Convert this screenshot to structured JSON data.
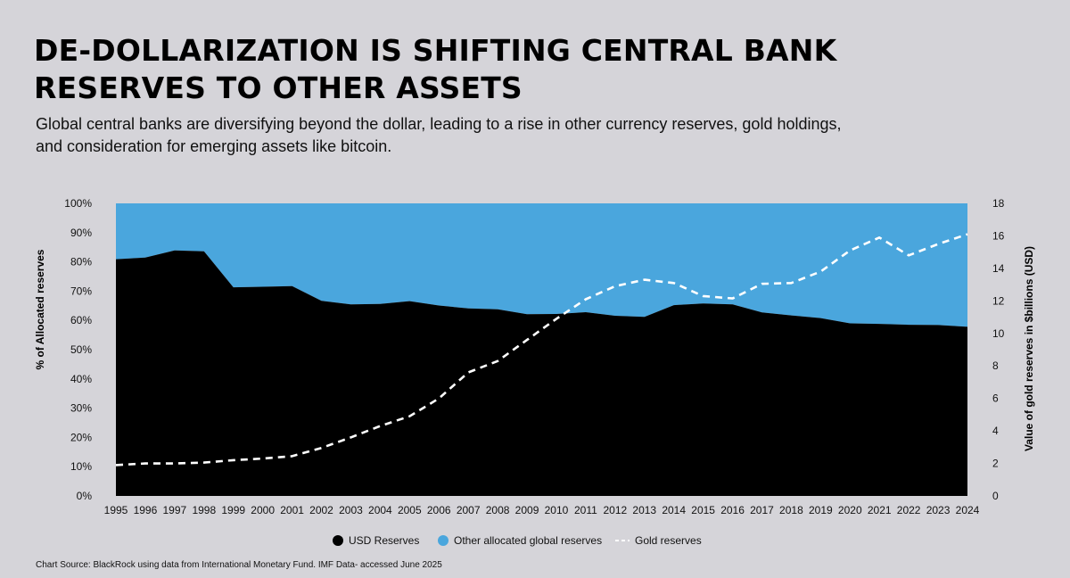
{
  "header": {
    "title_line1": "DE-DOLLARIZATION IS SHIFTING CENTRAL BANK",
    "title_line2": "RESERVES TO OTHER ASSETS",
    "subtitle_line1": "Global central banks are diversifying beyond the dollar, leading to a rise in other currency reserves, gold holdings,",
    "subtitle_line2": "and consideration for emerging assets like bitcoin."
  },
  "footer": {
    "source": "Chart Source:  BlackRock using data from International Monetary Fund. IMF Data- accessed June 2025"
  },
  "colors": {
    "background": "#d5d4d9",
    "usd": "#000000",
    "other": "#4aa6dd",
    "gold": "#ffffff"
  },
  "chart_data": {
    "type": "area",
    "x": [
      1995,
      1996,
      1997,
      1998,
      1999,
      2000,
      2001,
      2002,
      2003,
      2004,
      2005,
      2006,
      2007,
      2008,
      2009,
      2010,
      2011,
      2012,
      2013,
      2014,
      2015,
      2016,
      2017,
      2018,
      2019,
      2020,
      2021,
      2022,
      2023,
      2024
    ],
    "x_tick_labels": [
      "1995",
      "1996",
      "1997",
      "1998",
      "1999",
      "2000",
      "2001",
      "2002",
      "2003",
      "2004",
      "2005",
      "2006",
      "2007",
      "2008",
      "2009",
      "2010",
      "2011",
      "2012",
      "2013",
      "2014",
      "2015",
      "2016",
      "2017",
      "2018",
      "2019",
      "2020",
      "2021",
      "2022",
      "2023",
      "2024"
    ],
    "ylabel": "% of Allocated reserves",
    "ylabel_right": "Value of gold reserves in $billions (USD)",
    "ylim": [
      0,
      100
    ],
    "y_tick_labels": [
      "0%",
      "10%",
      "20%",
      "30%",
      "40%",
      "50%",
      "60%",
      "70%",
      "80%",
      "90%",
      "100%"
    ],
    "ylim_right": [
      0,
      18
    ],
    "y_right_tick_labels": [
      "0",
      "2",
      "4",
      "6",
      "8",
      "10",
      "12",
      "14",
      "16",
      "18"
    ],
    "series": [
      {
        "name": "USD Reserves",
        "kind": "area",
        "axis": "left",
        "values": [
          80.9,
          81.5,
          83.9,
          83.6,
          71.3,
          71.5,
          71.7,
          66.7,
          65.5,
          65.6,
          66.6,
          65.1,
          64.1,
          63.8,
          62.1,
          62.2,
          62.8,
          61.6,
          61.2,
          65.2,
          65.8,
          65.5,
          62.7,
          61.7,
          60.8,
          59.0,
          58.8,
          58.5,
          58.4,
          57.8
        ]
      },
      {
        "name": "Other allocated global reserves",
        "kind": "area",
        "axis": "left",
        "values": [
          19.1,
          18.5,
          16.1,
          16.4,
          28.7,
          28.5,
          28.3,
          33.3,
          34.5,
          34.4,
          33.4,
          34.9,
          35.9,
          36.2,
          37.9,
          37.8,
          37.2,
          38.4,
          38.8,
          34.8,
          34.2,
          34.5,
          37.3,
          38.3,
          39.2,
          41.0,
          41.2,
          41.5,
          41.6,
          42.2
        ]
      },
      {
        "name": "Gold reserves",
        "kind": "line",
        "axis": "right",
        "values": [
          1.9,
          2.0,
          2.0,
          2.05,
          2.2,
          2.3,
          2.45,
          2.95,
          3.6,
          4.3,
          4.9,
          6.0,
          7.6,
          8.3,
          9.6,
          10.9,
          12.1,
          12.9,
          13.3,
          13.1,
          12.3,
          12.15,
          13.05,
          13.1,
          13.8,
          15.1,
          15.9,
          14.8,
          15.5,
          16.1
        ]
      }
    ],
    "legend": {
      "placement": "bottom",
      "items": [
        "USD Reserves",
        "Other allocated global reserves",
        "Gold reserves"
      ]
    },
    "grid": false
  }
}
